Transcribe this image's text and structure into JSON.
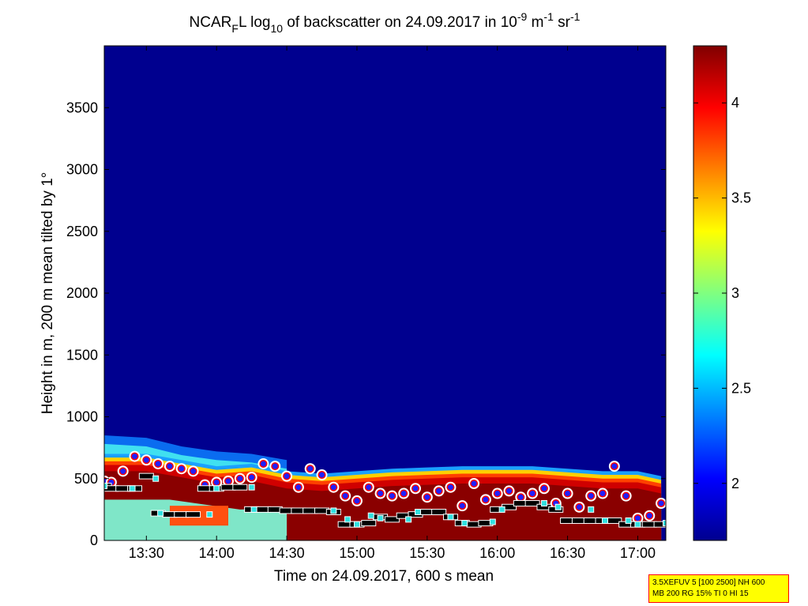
{
  "chart_data": {
    "type": "heatmap",
    "title": {
      "prefix": "NCAR",
      "prefix_sub": "F",
      "mid": "L log",
      "log_sub": "10",
      "rest": " of backscatter on 24.09.2017 in 10",
      "exp1": "-9",
      "unit1": " m",
      "exp2": "-1",
      "unit2": " sr",
      "exp3": "-1"
    },
    "xlabel": "Time on 24.09.2017, 600 s mean",
    "ylabel": "Height in m, 200 m mean tilted by 1°",
    "xlim": [
      "13:12",
      "17:12"
    ],
    "ylim": [
      0,
      4000
    ],
    "x_ticks": [
      "13:30",
      "14:00",
      "14:30",
      "15:00",
      "15:30",
      "16:00",
      "16:30",
      "17:00"
    ],
    "y_ticks": [
      "0",
      "500",
      "1000",
      "1500",
      "2000",
      "2500",
      "3000",
      "3500"
    ],
    "colorbar": {
      "range": [
        1.7,
        4.3
      ],
      "ticks": [
        "2",
        "2.5",
        "3",
        "3.5",
        "4"
      ],
      "colormap": [
        "#00008f",
        "#0000ff",
        "#0080ff",
        "#00ffff",
        "#80ff80",
        "#ffff00",
        "#ff8000",
        "#ff0000",
        "#800000"
      ]
    },
    "layers": {
      "aerosol_layer_top": {
        "x": [
          "13:12",
          "13:30",
          "13:45",
          "14:00",
          "14:15",
          "14:30",
          "14:45",
          "15:00",
          "15:15",
          "15:30",
          "15:45",
          "16:00",
          "16:15",
          "16:30",
          "16:45",
          "17:00",
          "17:10"
        ],
        "y": [
          700,
          700,
          650,
          600,
          620,
          560,
          540,
          560,
          580,
          590,
          600,
          600,
          600,
          580,
          560,
          560,
          520
        ]
      },
      "cloud_base_top": {
        "x": [
          "13:12",
          "13:30",
          "13:45",
          "14:00",
          "14:15",
          "14:30"
        ],
        "y": [
          850,
          830,
          760,
          720,
          700,
          650
        ]
      }
    },
    "series": [
      {
        "marker": "circle",
        "x": [
          "13:12",
          "13:15",
          "13:20",
          "13:25",
          "13:30",
          "13:35",
          "13:40",
          "13:45",
          "13:50",
          "13:55",
          "14:00",
          "14:05",
          "14:10",
          "14:15",
          "14:20",
          "14:25",
          "14:30",
          "14:35",
          "14:40",
          "14:45",
          "14:50",
          "14:55",
          "15:00",
          "15:05",
          "15:10",
          "15:15",
          "15:20",
          "15:25",
          "15:30",
          "15:35",
          "15:40",
          "15:45",
          "15:50",
          "15:55",
          "16:00",
          "16:05",
          "16:10",
          "16:15",
          "16:20",
          "16:25",
          "16:30",
          "16:35",
          "16:40",
          "16:45",
          "16:50",
          "16:55",
          "17:00",
          "17:05",
          "17:10"
        ],
        "y": [
          480,
          470,
          560,
          680,
          650,
          620,
          600,
          580,
          560,
          450,
          470,
          480,
          500,
          510,
          620,
          600,
          520,
          430,
          580,
          530,
          430,
          360,
          320,
          430,
          380,
          360,
          380,
          420,
          350,
          400,
          430,
          280,
          460,
          330,
          380,
          400,
          350,
          380,
          420,
          300,
          380,
          270,
          360,
          380,
          600,
          360,
          180,
          200,
          300
        ]
      },
      {
        "marker": "segment",
        "x": [
          "13:12",
          "13:15",
          "13:20",
          "13:25",
          "13:30",
          "13:35",
          "13:40",
          "13:45",
          "13:50",
          "13:55",
          "14:00",
          "14:05",
          "14:10",
          "14:15",
          "14:20",
          "14:25",
          "14:30",
          "14:35",
          "14:40",
          "14:45",
          "14:50",
          "14:55",
          "15:00",
          "15:05",
          "15:10",
          "15:15",
          "15:20",
          "15:25",
          "15:30",
          "15:35",
          "15:40",
          "15:45",
          "15:50",
          "15:55",
          "16:00",
          "16:05",
          "16:10",
          "16:15",
          "16:20",
          "16:25",
          "16:30",
          "16:35",
          "16:40",
          "16:45",
          "16:50",
          "16:55",
          "17:00",
          "17:05",
          "17:10"
        ],
        "y": [
          440,
          420,
          420,
          420,
          520,
          220,
          210,
          210,
          210,
          420,
          420,
          430,
          430,
          250,
          250,
          250,
          240,
          240,
          240,
          240,
          230,
          130,
          130,
          140,
          190,
          170,
          200,
          210,
          230,
          230,
          190,
          140,
          130,
          140,
          250,
          270,
          300,
          300,
          270,
          250,
          160,
          160,
          160,
          160,
          160,
          130,
          130,
          130,
          130
        ]
      },
      {
        "marker": "square",
        "x": [
          "13:12",
          "13:24",
          "13:34",
          "13:36",
          "13:57",
          "14:00",
          "14:15",
          "14:16",
          "14:50",
          "14:56",
          "15:00",
          "15:06",
          "15:10",
          "15:22",
          "15:26",
          "15:40",
          "15:46",
          "15:58",
          "16:02",
          "16:20",
          "16:26",
          "16:40",
          "16:46",
          "16:56",
          "17:00",
          "17:12"
        ],
        "y": [
          440,
          420,
          500,
          220,
          210,
          420,
          430,
          250,
          240,
          170,
          130,
          200,
          180,
          170,
          230,
          190,
          140,
          150,
          250,
          300,
          270,
          250,
          160,
          160,
          130,
          140
        ]
      }
    ]
  },
  "info_box": {
    "line1": "3.5XEFUV 5 [100 2500] NH 600",
    "line2": "MB 200 RG 15% TI 0 HI 15"
  }
}
